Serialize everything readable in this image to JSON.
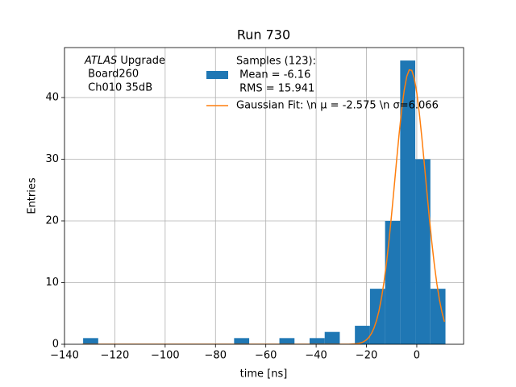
{
  "chart_data": {
    "type": "histogram",
    "title": "Run 730",
    "xlabel": "time [ns]",
    "ylabel": "Entries",
    "annotation_emphasis": "ATLAS",
    "annotation_lines": [
      " Upgrade",
      " Board260",
      " Ch010 35dB"
    ],
    "xlim": [
      -140,
      18.6
    ],
    "ylim": [
      0,
      48.1
    ],
    "xticks": [
      {
        "value": -140,
        "label": "−140"
      },
      {
        "value": -120,
        "label": "−120"
      },
      {
        "value": -100,
        "label": "−100"
      },
      {
        "value": -80,
        "label": "−80"
      },
      {
        "value": -60,
        "label": "−60"
      },
      {
        "value": -40,
        "label": "−40"
      },
      {
        "value": -20,
        "label": "−20"
      },
      0
    ],
    "yticks": [
      0,
      10,
      20,
      30,
      40
    ],
    "grid": true,
    "series": [
      {
        "type": "histogram",
        "name": [
          "Samples (123):",
          " Mean = -6.16",
          " RMS = 15.941"
        ],
        "color": "#1f77b4",
        "bins": [
          -132.6,
          -126.6,
          -120.6,
          -114.6,
          -108.6,
          -102.6,
          -96.6,
          -90.6,
          -84.6,
          -78.6,
          -72.6,
          -66.6,
          -60.6,
          -54.6,
          -48.6,
          -42.6,
          -36.6,
          -30.6,
          -24.6,
          -18.6,
          -12.6,
          -6.6,
          -0.6,
          5.4,
          11.4
        ],
        "values": [
          1,
          0,
          0,
          0,
          0,
          0,
          0,
          0,
          0,
          0,
          1,
          0,
          0,
          1,
          0,
          1,
          2,
          0,
          3,
          9,
          20,
          46,
          30,
          9
        ]
      },
      {
        "type": "line",
        "name": "Gaussian Fit: \\n μ = -2.575 \\n σ=6.066",
        "color": "#ff7f0e",
        "x": [
          -133,
          -27,
          -24,
          -23,
          -22,
          -21,
          -20,
          -19,
          -18,
          -17,
          -16,
          -15,
          -14,
          -13,
          -12,
          -11,
          -10,
          -9,
          -8,
          -7,
          -6,
          -5,
          -4,
          -3,
          -2,
          -1,
          0,
          1,
          2,
          3,
          4,
          5,
          6,
          7,
          8,
          9,
          10,
          11
        ],
        "values": [
          0,
          0,
          0.09,
          0.15,
          0.26,
          0.44,
          0.72,
          1.14,
          1.76,
          2.64,
          3.85,
          5.47,
          7.57,
          10.18,
          13.34,
          17.0,
          21.09,
          25.45,
          29.9,
          34.18,
          38.03,
          41.17,
          43.39,
          44.49,
          44.4,
          43.12,
          40.76,
          37.49,
          33.56,
          29.24,
          24.78,
          20.45,
          16.42,
          12.83,
          9.75,
          7.22,
          5.2,
          3.65
        ]
      }
    ]
  }
}
